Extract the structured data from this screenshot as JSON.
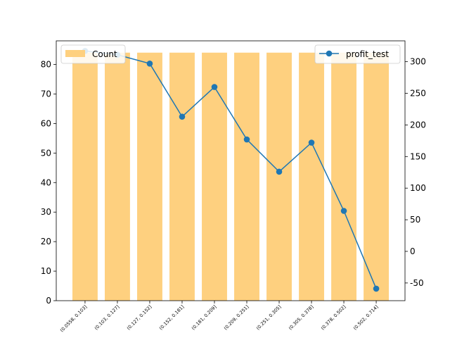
{
  "chart_data": {
    "type": "bar+line",
    "categories": [
      "(0.0558, 0.103]",
      "(0.103, 0.127]",
      "(0.127, 0.152]",
      "(0.152, 0.181]",
      "(0.181, 0.209]",
      "(0.209, 0.251]",
      "(0.251, 0.305]",
      "(0.305, 0.378]",
      "(0.378, 0.502]",
      "(0.502, 0.714]"
    ],
    "bar_series": {
      "name": "Count",
      "values": [
        84,
        84,
        84,
        84,
        84,
        84,
        84,
        84,
        84,
        84
      ],
      "color": "#fed07f",
      "axis": "left"
    },
    "line_series": {
      "name": "profit_test",
      "values": [
        317,
        311,
        297,
        213,
        260,
        177,
        126,
        172,
        64,
        -59
      ],
      "color": "#1f77b4",
      "axis": "right"
    },
    "left_axis": {
      "ylim": [
        0,
        88
      ],
      "ticks": [
        0,
        10,
        20,
        30,
        40,
        50,
        60,
        70,
        80
      ]
    },
    "right_axis": {
      "ylim": [
        -78,
        333
      ],
      "ticks": [
        -50,
        0,
        50,
        100,
        150,
        200,
        250,
        300
      ]
    },
    "legend": {
      "bar_placement": "upper-left",
      "line_placement": "upper-right"
    },
    "grid": false
  }
}
